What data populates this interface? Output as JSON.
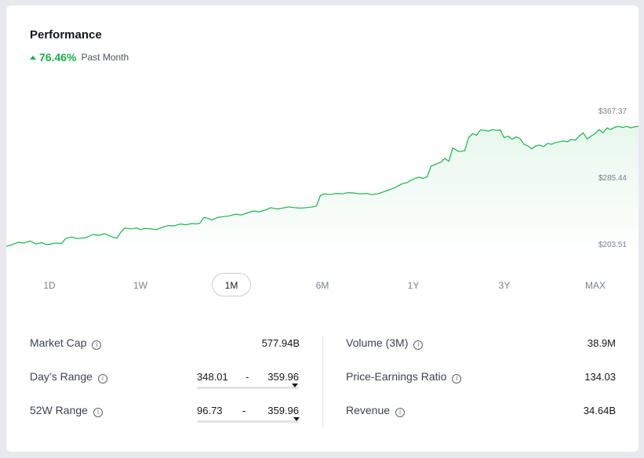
{
  "header": {
    "title": "Performance",
    "change_pct": "76.46%",
    "change_period": "Past Month",
    "accent": "#16b44a"
  },
  "chart_data": {
    "type": "area",
    "color": "#16b44a",
    "y_ticks": [
      "$367.37",
      "$285.44",
      "$203.51"
    ],
    "ylim": [
      203.51,
      367.37
    ],
    "grid": false,
    "points": [
      [
        0,
        201.5
      ],
      [
        3,
        203.5
      ],
      [
        6,
        206.5
      ],
      [
        9,
        205.5
      ],
      [
        12,
        208
      ],
      [
        15,
        204.5
      ],
      [
        18,
        206
      ],
      [
        20,
        203.8
      ],
      [
        22,
        204
      ],
      [
        25,
        205.5
      ],
      [
        28,
        205
      ],
      [
        30,
        211
      ],
      [
        33,
        213
      ],
      [
        36,
        211
      ],
      [
        40,
        212
      ],
      [
        44,
        216
      ],
      [
        47,
        215
      ],
      [
        50,
        217
      ],
      [
        53,
        213.5
      ],
      [
        56,
        211.5
      ],
      [
        58,
        219
      ],
      [
        60,
        224
      ],
      [
        63,
        223
      ],
      [
        66,
        224
      ],
      [
        68,
        222
      ],
      [
        70,
        223.5
      ],
      [
        73,
        223
      ],
      [
        76,
        222
      ],
      [
        79,
        225
      ],
      [
        82,
        227
      ],
      [
        85,
        226.5
      ],
      [
        88,
        229
      ],
      [
        91,
        228
      ],
      [
        94,
        229.5
      ],
      [
        96,
        229
      ],
      [
        98,
        230
      ],
      [
        100,
        237
      ],
      [
        102,
        236
      ],
      [
        104,
        234
      ],
      [
        107,
        237
      ],
      [
        110,
        238
      ],
      [
        113,
        239
      ],
      [
        116,
        241
      ],
      [
        119,
        240
      ],
      [
        122,
        242.5
      ],
      [
        125,
        245
      ],
      [
        128,
        244
      ],
      [
        131,
        246
      ],
      [
        134,
        249
      ],
      [
        137,
        247.5
      ],
      [
        140,
        248.5
      ],
      [
        143,
        250
      ],
      [
        146,
        249
      ],
      [
        149,
        248.5
      ],
      [
        152,
        249
      ],
      [
        155,
        250
      ],
      [
        157,
        251
      ],
      [
        159,
        264
      ],
      [
        161,
        266
      ],
      [
        164,
        265
      ],
      [
        167,
        266.5
      ],
      [
        170,
        266
      ],
      [
        173,
        267.5
      ],
      [
        176,
        267
      ],
      [
        179,
        266
      ],
      [
        182,
        266.5
      ],
      [
        185,
        265
      ],
      [
        188,
        266
      ],
      [
        191,
        268.5
      ],
      [
        194,
        271
      ],
      [
        197,
        274
      ],
      [
        200,
        278
      ],
      [
        203,
        280
      ],
      [
        205,
        283
      ],
      [
        207,
        285
      ],
      [
        209,
        286.5
      ],
      [
        211,
        285
      ],
      [
        213,
        287
      ],
      [
        215,
        300
      ],
      [
        218,
        303
      ],
      [
        220,
        305
      ],
      [
        222,
        309.5
      ],
      [
        224,
        306
      ],
      [
        226,
        322.5
      ],
      [
        229,
        318
      ],
      [
        232,
        319
      ],
      [
        234,
        335
      ],
      [
        236,
        340
      ],
      [
        238,
        338
      ],
      [
        240,
        344.5
      ],
      [
        242,
        344
      ],
      [
        244,
        343
      ],
      [
        246,
        345
      ],
      [
        248,
        344
      ],
      [
        250,
        344.5
      ],
      [
        252,
        335
      ],
      [
        254,
        337
      ],
      [
        256,
        333
      ],
      [
        258,
        336
      ],
      [
        260,
        334
      ],
      [
        262,
        327
      ],
      [
        264,
        325
      ],
      [
        266,
        321.5
      ],
      [
        268,
        325
      ],
      [
        270,
        326
      ],
      [
        272,
        324
      ],
      [
        274,
        328
      ],
      [
        276,
        327
      ],
      [
        278,
        329
      ],
      [
        280,
        330
      ],
      [
        282,
        331
      ],
      [
        284,
        330
      ],
      [
        286,
        333
      ],
      [
        288,
        332
      ],
      [
        290,
        337
      ],
      [
        292,
        341
      ],
      [
        294,
        333.5
      ],
      [
        296,
        337
      ],
      [
        298,
        340
      ],
      [
        300,
        345
      ],
      [
        302,
        341
      ],
      [
        304,
        347
      ],
      [
        306,
        345
      ],
      [
        308,
        348
      ],
      [
        310,
        349
      ],
      [
        312,
        347.5
      ],
      [
        314,
        349
      ],
      [
        316,
        347
      ],
      [
        318,
        348.5
      ],
      [
        320,
        349
      ]
    ]
  },
  "ranges": {
    "selected": "1M",
    "items": [
      {
        "id": "1d",
        "label": "1D"
      },
      {
        "id": "1w",
        "label": "1W"
      },
      {
        "id": "1m",
        "label": "1M"
      },
      {
        "id": "6m",
        "label": "6M"
      },
      {
        "id": "1y",
        "label": "1Y"
      },
      {
        "id": "3y",
        "label": "3Y"
      },
      {
        "id": "max",
        "label": "MAX"
      }
    ]
  },
  "stats": {
    "info_glyph": "i",
    "market_cap": {
      "label": "Market Cap",
      "value": "577.94B"
    },
    "days_range": {
      "label": "Day’s Range",
      "low": "348.01",
      "high": "359.96",
      "position": 0.96
    },
    "week52_range": {
      "label": "52W Range",
      "low": "96.73",
      "high": "359.96",
      "position": 0.98
    },
    "volume": {
      "label": "Volume (3M)",
      "value": "38.9M"
    },
    "pe_ratio": {
      "label": "Price-Earnings Ratio",
      "value": "134.03"
    },
    "revenue": {
      "label": "Revenue",
      "value": "34.64B"
    }
  }
}
